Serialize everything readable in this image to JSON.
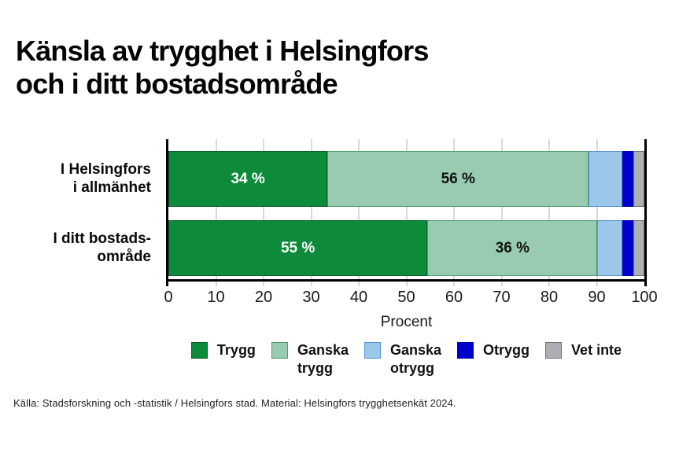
{
  "title": {
    "line1": "Känsla av trygghet i Helsingfors",
    "line2": "och i ditt bostadsområde"
  },
  "chart_data": {
    "type": "bar",
    "orientation": "horizontal",
    "stacked": true,
    "grid": true,
    "x_axis": {
      "label": "Procent",
      "min": 0,
      "max": 100,
      "ticks": [
        0,
        10,
        20,
        30,
        40,
        50,
        60,
        70,
        80,
        90,
        100
      ]
    },
    "series": [
      {
        "name": "Trygg",
        "legend_lines": [
          "Trygg"
        ],
        "fill": "#0e8a3b",
        "edge": "#0a5f29",
        "text_color": "#ffffff"
      },
      {
        "name": "Ganska trygg",
        "legend_lines": [
          "Ganska",
          "trygg"
        ],
        "fill": "#99cbb1",
        "edge": "#4f9a70",
        "text_color": "#111111"
      },
      {
        "name": "Ganska otrygg",
        "legend_lines": [
          "Ganska",
          "otrygg"
        ],
        "fill": "#9bc8ea",
        "edge": "#5a92cc",
        "text_color": "#111111"
      },
      {
        "name": "Otrygg",
        "legend_lines": [
          "Otrygg"
        ],
        "fill": "#0000cd",
        "edge": "#0000a8",
        "text_color": "#ffffff"
      },
      {
        "name": "Vet inte",
        "legend_lines": [
          "Vet inte"
        ],
        "fill": "#adadb3",
        "edge": "#707078",
        "text_color": "#111111"
      }
    ],
    "rows": [
      {
        "category_lines": [
          "I Helsingfors",
          "i allmänhet"
        ],
        "segments": [
          {
            "series": "Trygg",
            "value": 34,
            "label": "34 %"
          },
          {
            "series": "Ganska trygg",
            "value": 56,
            "label": "56 %"
          },
          {
            "series": "Ganska otrygg",
            "value": 7,
            "label": ""
          },
          {
            "series": "Otrygg",
            "value": 2,
            "label": ""
          },
          {
            "series": "Vet inte",
            "value": 2,
            "label": ""
          }
        ]
      },
      {
        "category_lines": [
          "I ditt bostads-",
          "område"
        ],
        "segments": [
          {
            "series": "Trygg",
            "value": 55,
            "label": "55 %"
          },
          {
            "series": "Ganska trygg",
            "value": 36,
            "label": "36 %"
          },
          {
            "series": "Ganska otrygg",
            "value": 5,
            "label": ""
          },
          {
            "series": "Otrygg",
            "value": 2,
            "label": ""
          },
          {
            "series": "Vet inte",
            "value": 2,
            "label": ""
          }
        ]
      }
    ]
  },
  "source": "Källa: Stadsforskning och -statistik / Helsingfors stad. Material: Helsingfors trygghetsenkät 2024."
}
